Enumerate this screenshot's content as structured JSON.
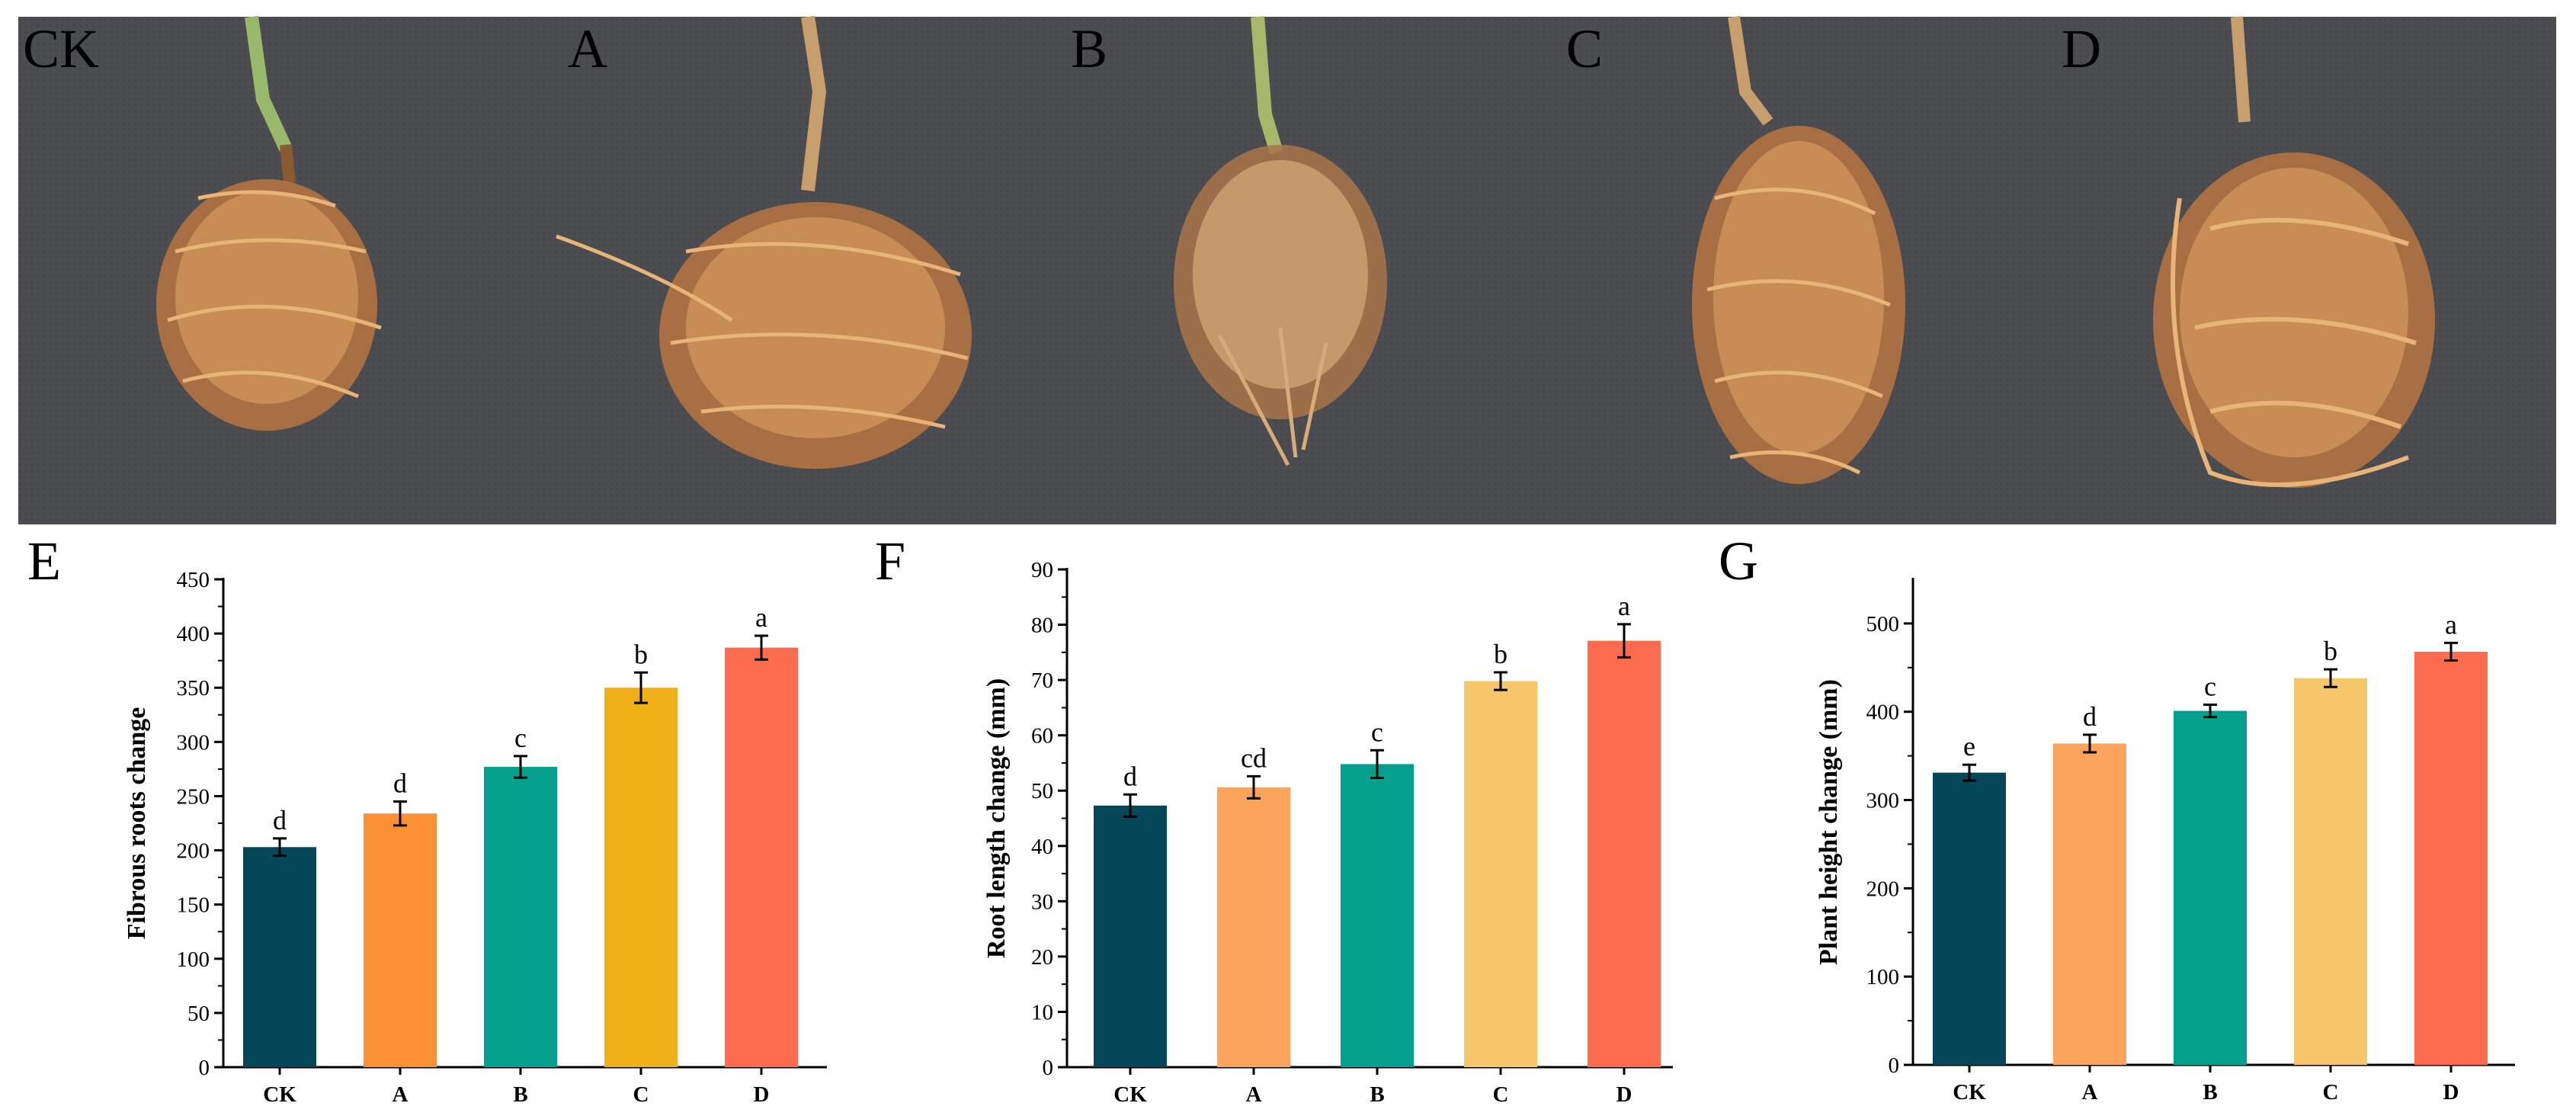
{
  "photo_labels": [
    "CK",
    "A",
    "B",
    "C",
    "D"
  ],
  "colors": {
    "CK": "#034758",
    "A_fibrous": "#fc9034",
    "A_light": "#fca35c",
    "B": "#03a08e",
    "C_fibrous": "#efaf16",
    "C_light": "#f5c66a",
    "D": "#fd6c4f",
    "photo_bg": "#4a4c4f",
    "root": "#c98a4e"
  },
  "chart_data": [
    {
      "panel": "E",
      "type": "bar",
      "categories": [
        "CK",
        "A",
        "B",
        "C",
        "D"
      ],
      "values": [
        203,
        234,
        277,
        350,
        387
      ],
      "errors": [
        8,
        11,
        10,
        14,
        11
      ],
      "significance": [
        "d",
        "d",
        "c",
        "b",
        "a"
      ],
      "ylabel": "Fibrous roots change",
      "ylim": [
        0,
        450
      ],
      "yticks": [
        0,
        50,
        100,
        150,
        200,
        250,
        300,
        350,
        400,
        450
      ]
    },
    {
      "panel": "F",
      "type": "bar",
      "categories": [
        "CK",
        "A",
        "B",
        "C",
        "D"
      ],
      "values": [
        47.3,
        50.6,
        54.8,
        69.8,
        77.1
      ],
      "errors": [
        2.0,
        2.0,
        2.5,
        1.6,
        3.0
      ],
      "significance": [
        "d",
        "cd",
        "c",
        "b",
        "a"
      ],
      "ylabel": "Root length change (mm)",
      "ylim": [
        0,
        90
      ],
      "yticks": [
        0,
        10,
        20,
        30,
        40,
        50,
        60,
        70,
        80,
        90
      ]
    },
    {
      "panel": "G",
      "type": "bar",
      "categories": [
        "CK",
        "A",
        "B",
        "C",
        "D"
      ],
      "values": [
        331,
        364,
        401,
        438,
        468
      ],
      "errors": [
        9,
        10,
        7,
        10,
        10
      ],
      "significance": [
        "e",
        "d",
        "c",
        "b",
        "a"
      ],
      "ylabel": "Plant height change (mm)",
      "ylim": [
        0,
        550
      ],
      "yticks": [
        0,
        100,
        200,
        300,
        400,
        500
      ]
    }
  ]
}
